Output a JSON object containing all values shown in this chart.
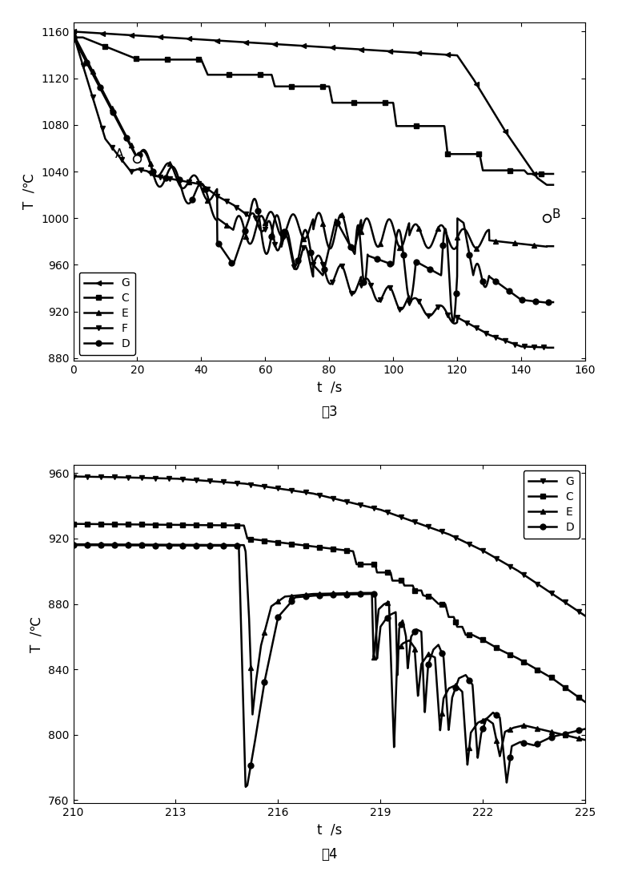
{
  "fig3": {
    "title": "图3",
    "xlabel": "t  /s",
    "ylabel": "T  /℃",
    "xlim": [
      0,
      160
    ],
    "ylim": [
      878,
      1168
    ],
    "xticks": [
      0,
      20,
      40,
      60,
      80,
      100,
      120,
      140,
      160
    ],
    "yticks": [
      880,
      920,
      960,
      1000,
      1040,
      1080,
      1120,
      1160
    ],
    "legend_labels": [
      "C",
      "D",
      "E",
      "F",
      "G"
    ]
  },
  "fig4": {
    "title": "图4",
    "xlabel": "t  /s",
    "ylabel": "T  /℃",
    "xlim": [
      210,
      225
    ],
    "ylim": [
      758,
      965
    ],
    "xticks": [
      210,
      213,
      216,
      219,
      222,
      225
    ],
    "yticks": [
      760,
      800,
      840,
      880,
      920,
      960
    ],
    "legend_labels": [
      "C",
      "D",
      "E",
      "G"
    ]
  },
  "background_color": "#ffffff",
  "linewidth": 1.8,
  "marker_size": 5
}
